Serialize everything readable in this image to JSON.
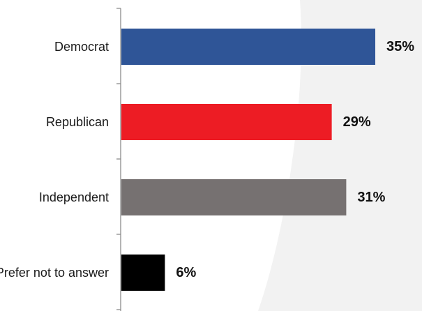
{
  "chart_data": {
    "type": "bar",
    "orientation": "horizontal",
    "categories": [
      "Democrat",
      "Republican",
      "Independent",
      "Prefer not to answer"
    ],
    "values": [
      35,
      29,
      31,
      6
    ],
    "value_labels": [
      "35%",
      "29%",
      "31%",
      "6%"
    ],
    "colors": [
      "#2f5597",
      "#ed1c24",
      "#767171",
      "#000000"
    ],
    "xlim": [
      0,
      40
    ],
    "unit": "%",
    "grid": false,
    "legend": "none"
  },
  "background": {
    "page_color": "#ffffff",
    "accent_color": "#f2f2f2"
  }
}
